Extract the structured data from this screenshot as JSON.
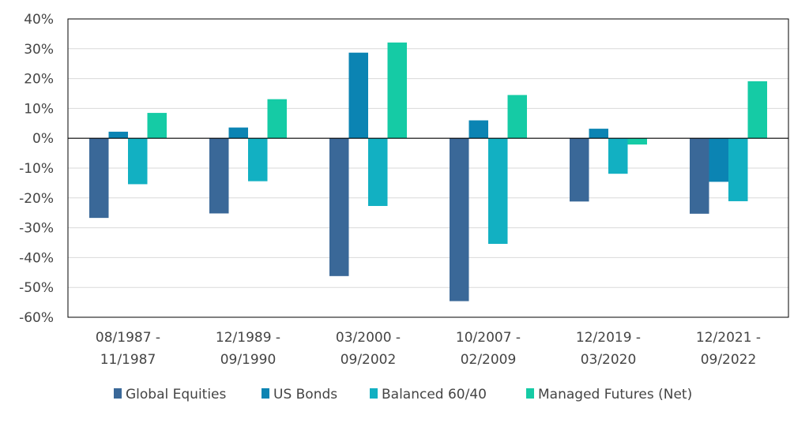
{
  "chart_data": {
    "type": "bar",
    "categories": [
      [
        "08/1987 -",
        "11/1987"
      ],
      [
        "12/1989 -",
        "09/1990"
      ],
      [
        "03/2000 -",
        "09/2002"
      ],
      [
        "10/2007 -",
        "02/2009"
      ],
      [
        "12/2019 -",
        "03/2020"
      ],
      [
        "12/2021 -",
        "09/2022"
      ]
    ],
    "series": [
      {
        "name": "Global Equities",
        "color": "#3a6898",
        "values": [
          -26.7,
          -25.2,
          -46.2,
          -54.6,
          -21.2,
          -25.3
        ]
      },
      {
        "name": "US Bonds",
        "color": "#0b84b3",
        "values": [
          2.2,
          3.6,
          28.7,
          6.0,
          3.2,
          -14.6
        ]
      },
      {
        "name": "Balanced 60/40",
        "color": "#12b0c2",
        "values": [
          -15.4,
          -14.4,
          -22.7,
          -35.4,
          -11.9,
          -21.1
        ]
      },
      {
        "name": "Managed Futures (Net)",
        "color": "#15cba5",
        "values": [
          8.5,
          13.1,
          32.1,
          14.5,
          -2.1,
          19.1
        ]
      }
    ],
    "ylim": [
      -60,
      40
    ],
    "yticks": [
      -60,
      -50,
      -40,
      -30,
      -20,
      -10,
      0,
      10,
      20,
      30,
      40
    ],
    "ytick_labels": [
      "-60%",
      "-50%",
      "-40%",
      "-30%",
      "-20%",
      "-10%",
      "0%",
      "10%",
      "20%",
      "30%",
      "40%"
    ],
    "grid": true,
    "legend_position": "bottom"
  }
}
